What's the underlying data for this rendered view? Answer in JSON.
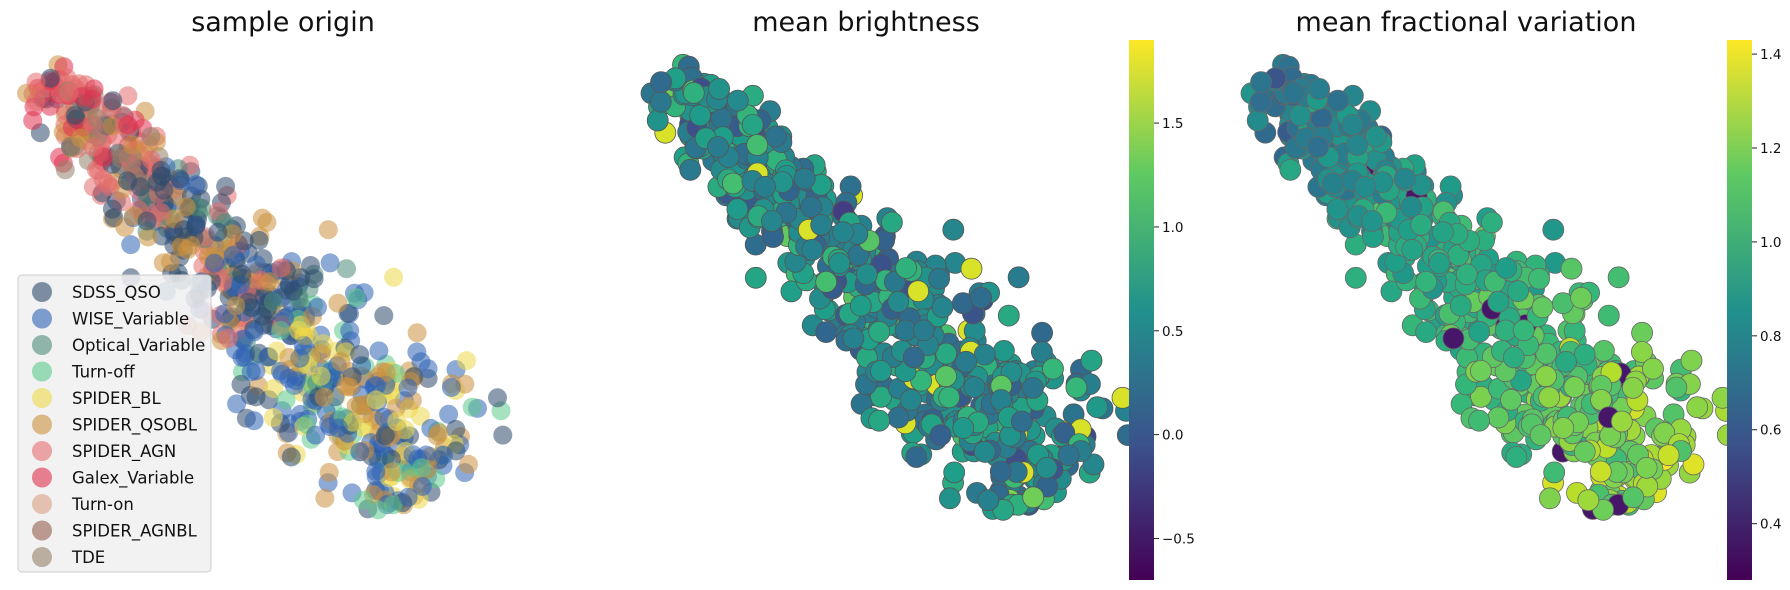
{
  "chart_data": [
    {
      "type": "scatter",
      "title": "sample origin",
      "legend_position": "lower-left",
      "series": [
        {
          "name": "SDSS_QSO",
          "color": "#2e4a6b"
        },
        {
          "name": "WISE_Variable",
          "color": "#2f63b5"
        },
        {
          "name": "Optical_Variable",
          "color": "#4d8a78"
        },
        {
          "name": "Turn-off",
          "color": "#5cc98c"
        },
        {
          "name": "SPIDER_BL",
          "color": "#ecd84a"
        },
        {
          "name": "SPIDER_QSOBL",
          "color": "#cc9240"
        },
        {
          "name": "SPIDER_AGN",
          "color": "#e46c6c"
        },
        {
          "name": "Galex_Variable",
          "color": "#e0314f"
        },
        {
          "name": "Turn-on",
          "color": "#d89f82"
        },
        {
          "name": "SPIDER_AGNBL",
          "color": "#955f4e"
        },
        {
          "name": "TDE",
          "color": "#94806a"
        }
      ]
    },
    {
      "type": "scatter",
      "title": "mean brightness",
      "colormap": "viridis",
      "colorbar": {
        "min": -0.7,
        "max": 1.9,
        "ticks": [
          "1.5",
          "1.0",
          "0.5",
          "0.0",
          "−0.5"
        ],
        "tick_values": [
          1.5,
          1.0,
          0.5,
          0.0,
          -0.5
        ]
      }
    },
    {
      "type": "scatter",
      "title": "mean fractional variation",
      "colormap": "viridis",
      "colorbar": {
        "min": 0.28,
        "max": 1.43,
        "ticks": [
          "1.4",
          "1.2",
          "1.0",
          "0.8",
          "0.6",
          "0.4"
        ],
        "tick_values": [
          1.4,
          1.2,
          1.0,
          0.8,
          0.6,
          0.4
        ]
      }
    }
  ]
}
